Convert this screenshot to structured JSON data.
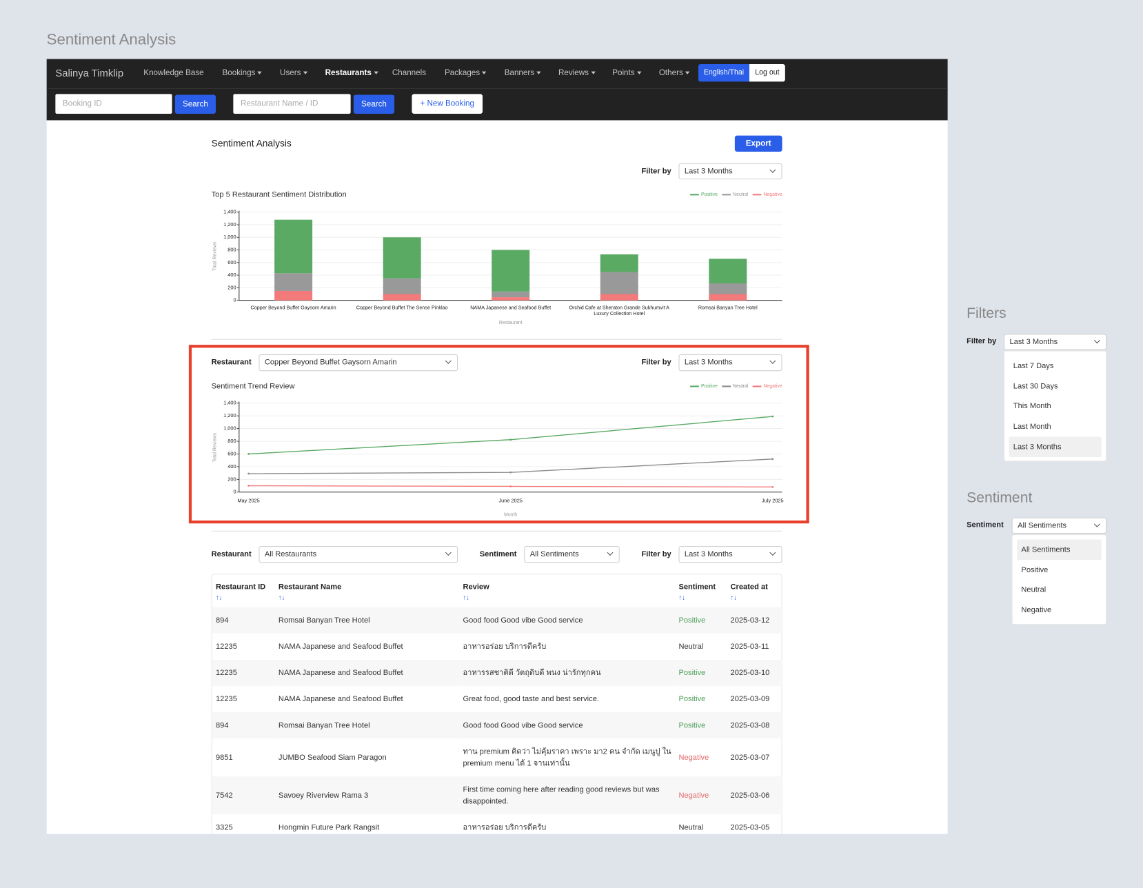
{
  "page_title": "Sentiment Analysis",
  "navbar": {
    "brand": "Salinya Timklip",
    "items": [
      "Knowledge Base",
      "Bookings",
      "Users",
      "Restaurants",
      "Channels",
      "Packages",
      "Banners",
      "Reviews",
      "Points",
      "Others"
    ],
    "language": "English/Thai",
    "logout": "Log out"
  },
  "search": {
    "booking_placeholder": "Booking ID",
    "restaurant_placeholder": "Restaurant Name / ID",
    "buttons": [
      "Search",
      "Search"
    ],
    "new_booking": "+ New Booking"
  },
  "panel": {
    "title": "Sentiment Analysis",
    "export": "Export",
    "filter_label": "Filter by",
    "filter_value": "Last 3 Months"
  },
  "chart_data": [
    {
      "type": "bar",
      "stacked": true,
      "title": "Top 5 Restaurant Sentiment Distribution",
      "x_label": "Restaurant",
      "y_label": "Total Reviews",
      "categories": [
        "Copper Beyond Buffet Gaysorn Amarin",
        "Copper Beyond Buffet The Sense Pinklao",
        "NAMA Japanese and Seafood Buffet",
        "Orchid Cafe at Sheraton Grande Sukhumvit A Luxury Collection Hotel",
        "Romsai Banyan Tree Hotel"
      ],
      "series": [
        {
          "name": "Positive",
          "color": "#5aaa64",
          "values": [
            850,
            650,
            660,
            280,
            390
          ]
        },
        {
          "name": "Neutral",
          "color": "#999999",
          "values": [
            280,
            250,
            90,
            350,
            170
          ]
        },
        {
          "name": "Negative",
          "color": "#f27a7a",
          "values": [
            150,
            100,
            50,
            100,
            100
          ]
        }
      ],
      "ylim": [
        0,
        1400
      ],
      "yticks": [
        0,
        200,
        400,
        600,
        800,
        {
          "value": 1000,
          "label": "1,000"
        },
        {
          "value": 1200,
          "label": "1,200"
        },
        {
          "value": 1400,
          "label": "1,400"
        }
      ],
      "grid": true,
      "legend": "top-right"
    },
    {
      "type": "line",
      "title": "Sentiment Trend Review",
      "x_label": "Month",
      "y_label": "Total Reviews",
      "categories": [
        "May 2025",
        "June 2025",
        "July 2025"
      ],
      "series": [
        {
          "name": "Positive",
          "color": "#5aaa64",
          "values": [
            600,
            825,
            1190
          ]
        },
        {
          "name": "Neutral",
          "color": "#8a8a8a",
          "values": [
            290,
            310,
            520
          ]
        },
        {
          "name": "Negative",
          "color": "#f27a7a",
          "values": [
            100,
            90,
            80
          ]
        }
      ],
      "ylim": [
        0,
        1400
      ],
      "yticks": [
        0,
        200,
        400,
        600,
        800,
        {
          "value": 1000,
          "label": "1,000"
        },
        {
          "value": 1200,
          "label": "1,200"
        },
        {
          "value": 1400,
          "label": "1,400"
        }
      ],
      "grid": true,
      "legend": "top-right"
    }
  ],
  "trend_controls": {
    "restaurant_label": "Restaurant",
    "restaurant_value": "Copper Beyond Buffet Gaysorn Amarin",
    "filter_label": "Filter by",
    "filter_value": "Last 3 Months"
  },
  "table_filters": {
    "restaurant_label": "Restaurant",
    "restaurant_value": "All Restaurants",
    "sentiment_label": "Sentiment",
    "sentiment_value": "All Sentiments",
    "filter_label": "Filter by",
    "filter_value": "Last 3 Months"
  },
  "table": {
    "columns": [
      "Restaurant ID",
      "Restaurant Name",
      "Review",
      "Sentiment",
      "Created at"
    ],
    "sort_icon": "↑↓",
    "sentiment_colors": {
      "Positive": "#4fa05a",
      "Negative": "#e26a6a"
    },
    "rows": [
      [
        894,
        "Romsai Banyan Tree Hotel",
        "Good food Good vibe Good service",
        "Positive",
        "2025-03-12"
      ],
      [
        12235,
        "NAMA Japanese and Seafood Buffet",
        "อาหารอร่อย บริการดีครับ",
        "Neutral",
        "2025-03-11"
      ],
      [
        12235,
        "NAMA Japanese and Seafood Buffet",
        "อาหารรสชาติดี วัตถุดิบดี พนง น่ารักทุกคน",
        "Positive",
        "2025-03-10"
      ],
      [
        12235,
        "NAMA Japanese and Seafood Buffet",
        "Great food, good taste and best service.",
        "Positive",
        "2025-03-09"
      ],
      [
        894,
        "Romsai Banyan Tree Hotel",
        "Good food Good vibe Good service",
        "Positive",
        "2025-03-08"
      ],
      [
        9851,
        "JUMBO Seafood Siam Paragon",
        "ทาน premium คิดว่า ไม่คุ้มราคา เพราะ มา2 คน จำกัด เมนูปู ใน premium menu ได้ 1 จานเท่านั้น",
        "Negative",
        "2025-03-07"
      ],
      [
        7542,
        "Savoey Riverview Rama 3",
        "First time coming here after reading good reviews but was disappointed.",
        "Negative",
        "2025-03-06"
      ],
      [
        3325,
        "Hongmin Future Park Rangsit",
        "อาหารอร่อย บริการดีครับ",
        "Neutral",
        "2025-03-05"
      ]
    ]
  },
  "side": {
    "filters": {
      "heading": "Filters",
      "label": "Filter by",
      "value": "Last 3 Months",
      "options": [
        "Last 7 Days",
        "Last 30 Days",
        "This Month",
        "Last Month",
        "Last 3 Months"
      ]
    },
    "sentiment": {
      "heading": "Sentiment",
      "label": "Sentiment",
      "value": "All Sentiments",
      "options": [
        "All Sentiments",
        "Positive",
        "Neutral",
        "Negative"
      ]
    }
  }
}
